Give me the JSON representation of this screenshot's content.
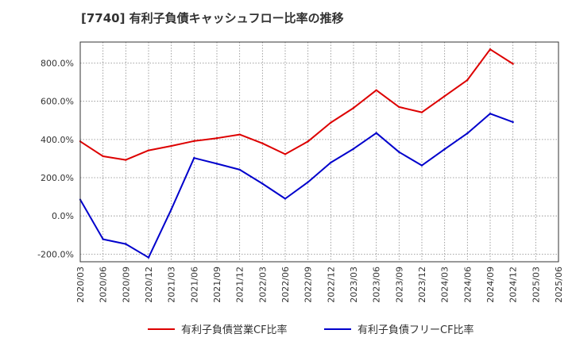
{
  "chart_data": {
    "type": "line",
    "title": "[7740]  有利子負債キャッシュフロー比率の推移",
    "xlabel": "",
    "ylabel": "",
    "ylim": [
      -240,
      910
    ],
    "x_ticks": [
      "2020/03",
      "2020/06",
      "2020/09",
      "2020/12",
      "2021/03",
      "2021/06",
      "2021/09",
      "2021/12",
      "2022/03",
      "2022/06",
      "2022/09",
      "2022/12",
      "2023/03",
      "2023/06",
      "2023/09",
      "2023/12",
      "2024/03",
      "2024/06",
      "2024/09",
      "2024/12",
      "2025/03",
      "2025/06"
    ],
    "y_ticks": [
      {
        "value": -200,
        "label": "-200.0%"
      },
      {
        "value": 0,
        "label": "0.0%"
      },
      {
        "value": 200,
        "label": "200.0%"
      },
      {
        "value": 400,
        "label": "400.0%"
      },
      {
        "value": 600,
        "label": "600.0%"
      },
      {
        "value": 800,
        "label": "800.0%"
      }
    ],
    "grid": true,
    "legend_position": "bottom",
    "series": [
      {
        "name": "有利子負債営業CF比率",
        "color": "#dd0000",
        "x": [
          "2020/03",
          "2020/06",
          "2020/09",
          "2020/12",
          "2021/03",
          "2021/06",
          "2021/09",
          "2021/12",
          "2022/03",
          "2022/06",
          "2022/09",
          "2022/12",
          "2023/03",
          "2023/06",
          "2023/09",
          "2023/12",
          "2024/03",
          "2024/06",
          "2024/09",
          "2024/12"
        ],
        "values": [
          390,
          312,
          293,
          343,
          366,
          392,
          407,
          426,
          380,
          323,
          390,
          488,
          565,
          658,
          570,
          542,
          627,
          711,
          872,
          796
        ]
      },
      {
        "name": "有利子負債フリーCF比率",
        "color": "#0000cc",
        "x": [
          "2020/03",
          "2020/06",
          "2020/09",
          "2020/12",
          "2021/03",
          "2021/06",
          "2021/09",
          "2021/12",
          "2022/03",
          "2022/06",
          "2022/09",
          "2022/12",
          "2023/03",
          "2023/06",
          "2023/09",
          "2023/12",
          "2024/03",
          "2024/06",
          "2024/09",
          "2024/12"
        ],
        "values": [
          85,
          -122,
          -147,
          -218,
          35,
          303,
          273,
          242,
          169,
          90,
          177,
          279,
          351,
          434,
          334,
          264,
          349,
          432,
          535,
          491
        ]
      }
    ]
  }
}
